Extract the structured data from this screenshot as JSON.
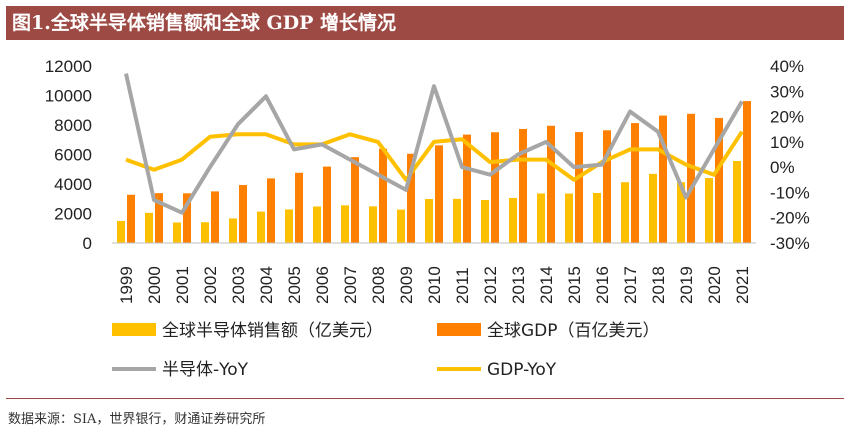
{
  "header": {
    "title": "图1.全球半导体销售额和全球 GDP 增长情况"
  },
  "footer": {
    "source": "数据来源：SIA，世界银行，财通证券研究所"
  },
  "colors": {
    "title_bg": "#9e4a44",
    "semi_sales": "#ffc000",
    "gdp": "#ff7f00",
    "semi_yoy": "#a6a6a6",
    "gdp_yoy": "#ffc000"
  },
  "chart_data": {
    "type": "bar+line",
    "title": "图1.全球半导体销售额和全球 GDP 增长情况",
    "categories": [
      "1999",
      "2000",
      "2001",
      "2002",
      "2003",
      "2004",
      "2005",
      "2006",
      "2007",
      "2008",
      "2009",
      "2010",
      "2011",
      "2012",
      "2013",
      "2014",
      "2015",
      "2016",
      "2017",
      "2018",
      "2019",
      "2020",
      "2021"
    ],
    "left_axis": {
      "min": 0,
      "max": 12000,
      "ticks": [
        "0",
        "2000",
        "4000",
        "6000",
        "8000",
        "10000",
        "12000"
      ]
    },
    "right_axis": {
      "min": -0.3,
      "max": 0.4,
      "ticks": [
        "-30%",
        "-20%",
        "-10%",
        "0%",
        "10%",
        "20%",
        "30%",
        "40%"
      ]
    },
    "series": [
      {
        "name": "全球半导体销售额（亿美元）",
        "type": "bar",
        "axis": "left",
        "values": [
          1494,
          2044,
          1390,
          1407,
          1664,
          2130,
          2275,
          2477,
          2556,
          2486,
          2263,
          2983,
          2995,
          2916,
          3056,
          3358,
          3352,
          3389,
          4122,
          4688,
          4123,
          4404,
          5559
        ]
      },
      {
        "name": "全球GDP（百亿美元）",
        "type": "bar",
        "axis": "left",
        "values": [
          3270,
          3380,
          3370,
          3500,
          3930,
          4380,
          4760,
          5180,
          5820,
          6390,
          6050,
          6620,
          7350,
          7510,
          7730,
          7950,
          7520,
          7640,
          8130,
          8640,
          8760,
          8480,
          9620
        ]
      },
      {
        "name": "半导体-YoY",
        "type": "line",
        "axis": "right",
        "values": [
          0.37,
          -0.13,
          -0.18,
          0.0,
          0.17,
          0.28,
          0.07,
          0.09,
          0.03,
          -0.03,
          -0.09,
          0.32,
          0.0,
          -0.03,
          0.05,
          0.1,
          0.0,
          0.01,
          0.22,
          0.14,
          -0.12,
          0.07,
          0.26
        ]
      },
      {
        "name": "GDP-YoY",
        "type": "line",
        "axis": "right",
        "values": [
          0.03,
          -0.01,
          0.03,
          0.12,
          0.13,
          0.13,
          0.09,
          0.09,
          0.13,
          0.1,
          -0.05,
          0.1,
          0.11,
          0.02,
          0.03,
          0.03,
          -0.05,
          0.02,
          0.07,
          0.07,
          0.01,
          -0.03,
          0.14
        ]
      }
    ],
    "legend": [
      {
        "label": "全球半导体销售额（亿美元）",
        "kind": "bar"
      },
      {
        "label": "全球GDP（百亿美元）",
        "kind": "bar"
      },
      {
        "label": "半导体-YoY",
        "kind": "line"
      },
      {
        "label": "GDP-YoY",
        "kind": "line"
      }
    ],
    "legend_position": "bottom"
  }
}
